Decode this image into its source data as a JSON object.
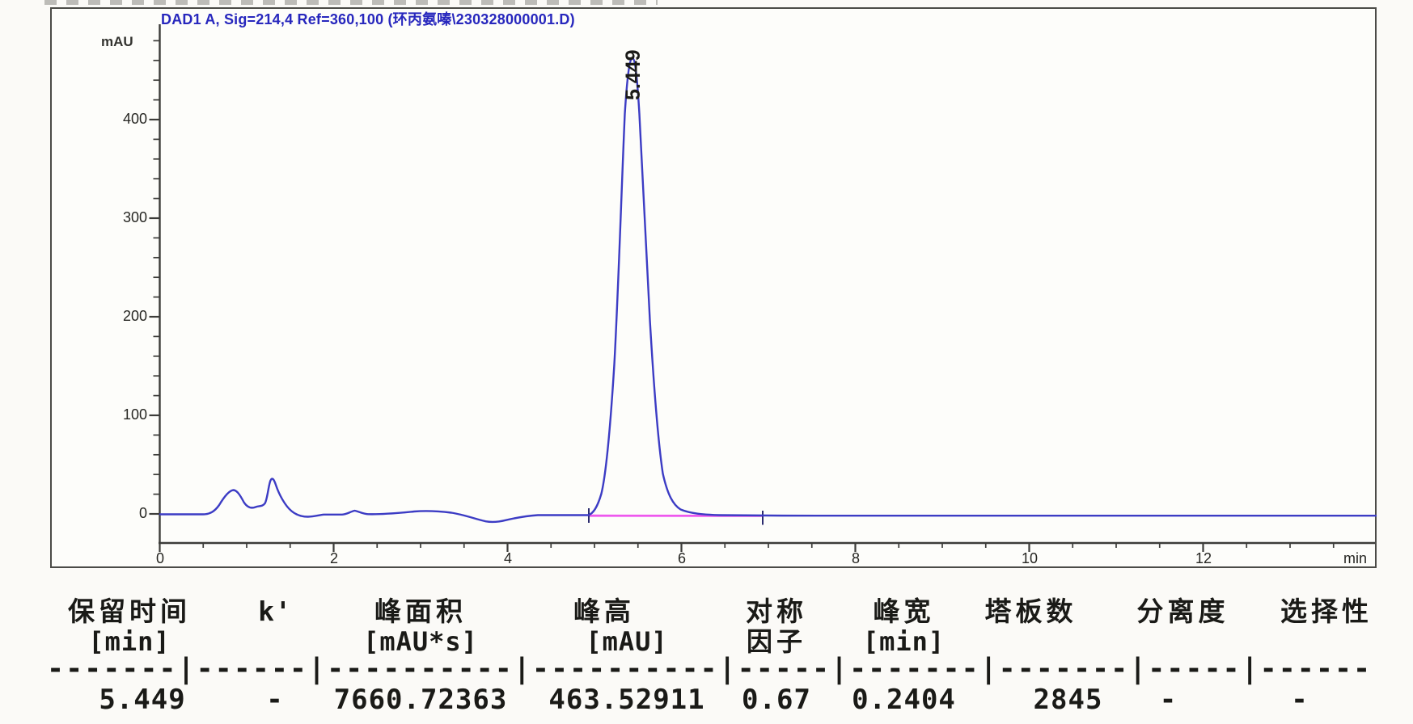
{
  "chart": {
    "title": "DAD1 A, Sig=214,4 Ref=360,100 (环丙氨嗪\\230328000001.D)",
    "y_unit": "mAU",
    "x_unit_label": "min",
    "y_ticks": [
      "0",
      "100",
      "200",
      "300",
      "400"
    ],
    "x_ticks": [
      "0",
      "2",
      "4",
      "6",
      "8",
      "10",
      "12"
    ],
    "peak_label": "5.449",
    "trace_color": "#3c3cc4",
    "baseline_color": "#ee58ee",
    "title_color": "#2727bd"
  },
  "chart_data": {
    "type": "line",
    "title": "DAD1 A, Sig=214,4 Ref=360,100 (环丙氨嗪\\230328000001.D)",
    "xlabel": "min",
    "ylabel": "mAU",
    "xlim": [
      0,
      13.97
    ],
    "ylim": [
      -20,
      500
    ],
    "x_ticks": [
      0,
      2,
      4,
      6,
      8,
      10,
      12
    ],
    "y_ticks": [
      0,
      100,
      200,
      300,
      400
    ],
    "grid": false,
    "legend": "none",
    "series": [
      {
        "name": "DAD1 A, Sig=214,4 Ref=360,100",
        "color": "#3c3cc4",
        "points_t_mau": [
          [
            0,
            0
          ],
          [
            0.5,
            0
          ],
          [
            0.7,
            2
          ],
          [
            0.86,
            24
          ],
          [
            1.0,
            6
          ],
          [
            1.12,
            8
          ],
          [
            1.26,
            35
          ],
          [
            1.45,
            4
          ],
          [
            1.7,
            -2
          ],
          [
            2.0,
            -0.5
          ],
          [
            2.23,
            4
          ],
          [
            2.4,
            0
          ],
          [
            3.1,
            3
          ],
          [
            3.45,
            0
          ],
          [
            3.72,
            -7
          ],
          [
            4.1,
            -1.5
          ],
          [
            4.93,
            0
          ],
          [
            5.08,
            10
          ],
          [
            5.2,
            60
          ],
          [
            5.3,
            200
          ],
          [
            5.38,
            380
          ],
          [
            5.449,
            463.5
          ],
          [
            5.52,
            380
          ],
          [
            5.62,
            200
          ],
          [
            5.72,
            80
          ],
          [
            5.85,
            25
          ],
          [
            6.0,
            8
          ],
          [
            6.2,
            3
          ],
          [
            6.5,
            0
          ],
          [
            6.93,
            -1
          ],
          [
            13.97,
            -1.5
          ]
        ]
      }
    ],
    "integration_baseline": {
      "start_min": 4.93,
      "end_min": 6.93,
      "color": "#ee58ee"
    },
    "peaks": [
      {
        "retention_min": 5.449,
        "k_prime": "-",
        "area_mau_s": 7660.72363,
        "height_mau": 463.52911,
        "symmetry_factor": 0.67,
        "width_min": 0.2404,
        "plates": 2845,
        "resolution": "-",
        "selectivity": "-"
      }
    ]
  },
  "table": {
    "columns": [
      {
        "h1": "保留时间",
        "h2": "[min]",
        "value": "5.449"
      },
      {
        "h1": "k'",
        "h2": "",
        "value": "-"
      },
      {
        "h1": "峰面积",
        "h2": "[mAU*s]",
        "value": "7660.72363"
      },
      {
        "h1": "峰高",
        "h2": "[mAU]",
        "value": "463.52911"
      },
      {
        "h1": "对称",
        "h2": "因子",
        "value": "0.67"
      },
      {
        "h1": "峰宽",
        "h2": "[min]",
        "value": "0.2404"
      },
      {
        "h1": "塔板数",
        "h2": "",
        "value": "2845"
      },
      {
        "h1": "分离度",
        "h2": "",
        "value": "-"
      },
      {
        "h1": "选择性",
        "h2": "",
        "value": "-"
      }
    ],
    "separator": "-------|------|----------|----------|-----|-------|-------|-----|------"
  }
}
